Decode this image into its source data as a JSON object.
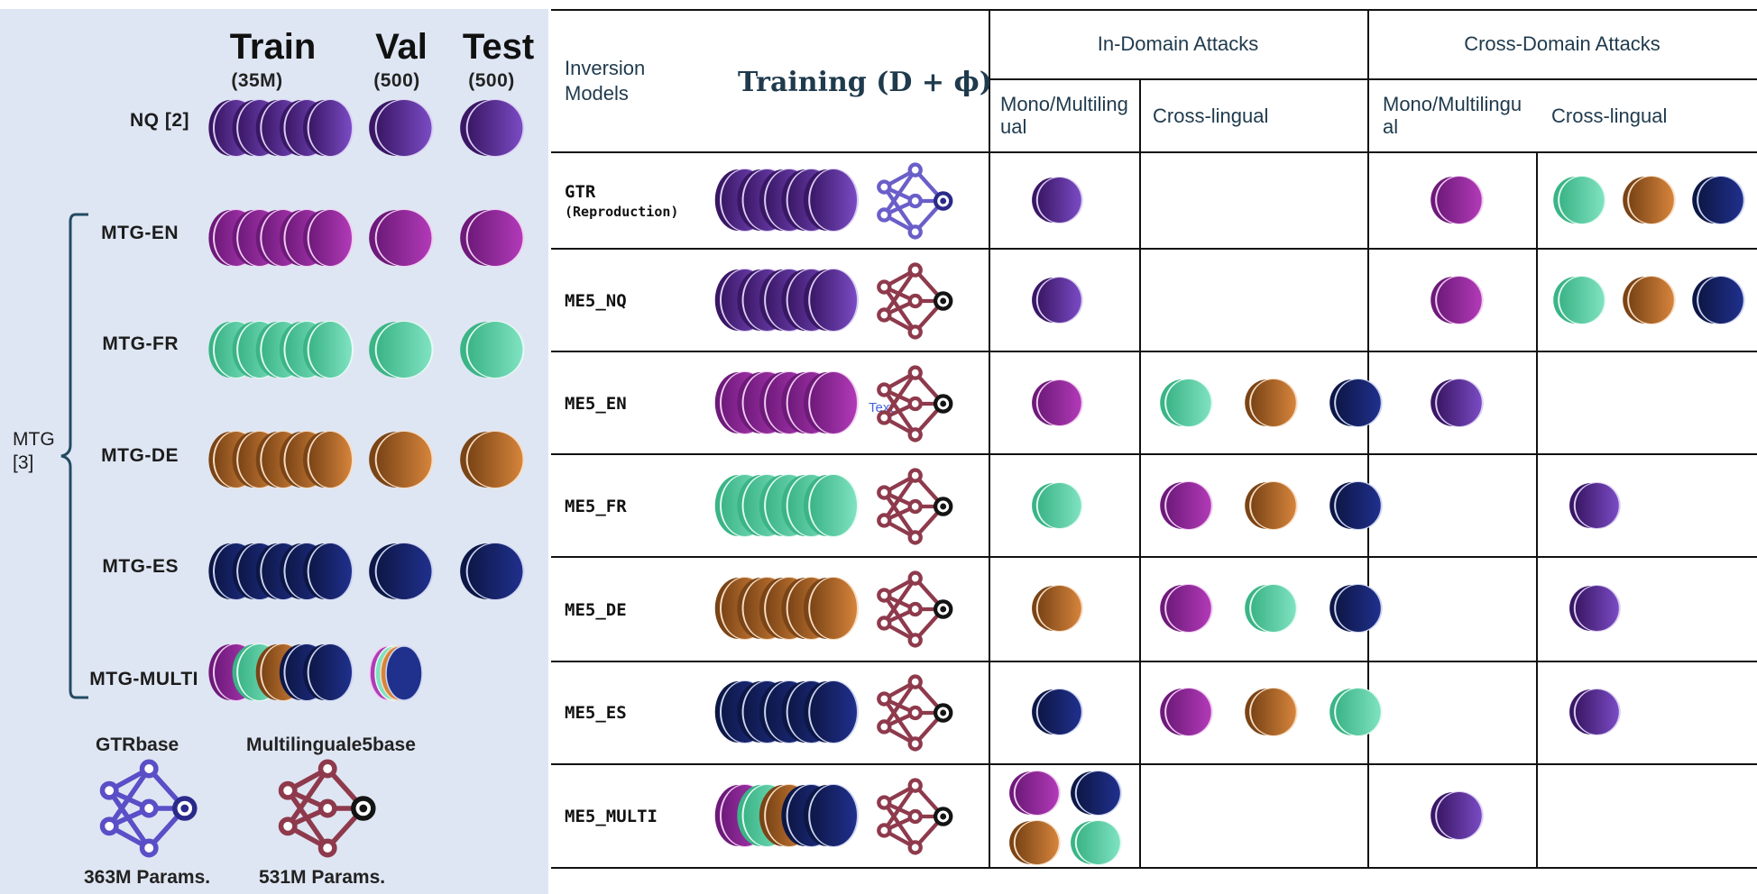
{
  "left_panel": {
    "columns": [
      {
        "title": "Train",
        "subtitle": "(35M)"
      },
      {
        "title": "Val",
        "subtitle": "(500)"
      },
      {
        "title": "Test",
        "subtitle": "(500)"
      }
    ],
    "rows": [
      {
        "label": "NQ [2]",
        "colorset": "purple"
      },
      {
        "label": "MTG-EN",
        "colorset": "magenta"
      },
      {
        "label": "MTG-FR",
        "colorset": "mint"
      },
      {
        "label": "MTG-DE",
        "colorset": "orange"
      },
      {
        "label": "MTG-ES",
        "colorset": "navy"
      },
      {
        "label": "MTG-MULTI",
        "colorset": "multi"
      }
    ],
    "group_label_line1": "MTG",
    "group_label_line2": "[3]",
    "models": [
      {
        "name": "GTRbase",
        "params": "363M Params.",
        "icon": "neural-network-icon",
        "color": "#5a4fc7"
      },
      {
        "name": "Multilinguale5base",
        "params": "531M Params.",
        "icon": "neural-network-icon",
        "color": "#8e3a4c"
      }
    ]
  },
  "table": {
    "header": {
      "inversion_models": "Inversion Models",
      "training_formula": "Training (D + ϕ)",
      "in_domain": "In-Domain Attacks",
      "cross_domain": "Cross-Domain Attacks",
      "mono_in": "Mono/Multilingual",
      "cross_in": "Cross-lingual",
      "mono_cross": "Mono/Multilingual",
      "cross_cross": "Cross-lingual"
    },
    "rows": [
      {
        "name": "GTR",
        "sub": "(Reproduction)",
        "train": "purple",
        "net": "gtr",
        "in_mono": [
          "purple"
        ],
        "in_cross": [],
        "cd_mono": [
          "magenta"
        ],
        "cd_cross": [
          "mint",
          "orange",
          "navy"
        ]
      },
      {
        "name": "ME5_NQ",
        "sub": "",
        "train": "purple",
        "net": "me5",
        "in_mono": [
          "purple"
        ],
        "in_cross": [],
        "cd_mono": [
          "magenta"
        ],
        "cd_cross": [
          "mint",
          "orange",
          "navy"
        ]
      },
      {
        "name": "ME5_EN",
        "sub": "",
        "train": "magenta",
        "net": "me5",
        "in_mono": [
          "magenta"
        ],
        "in_cross": [
          "mint",
          "orange",
          "navy"
        ],
        "cd_mono": [
          "purple"
        ],
        "cd_cross": []
      },
      {
        "name": "ME5_FR",
        "sub": "",
        "train": "mint",
        "net": "me5",
        "in_mono": [
          "mint"
        ],
        "in_cross": [
          "magenta",
          "orange",
          "navy"
        ],
        "cd_mono": [],
        "cd_cross": [
          "purple"
        ]
      },
      {
        "name": "ME5_DE",
        "sub": "",
        "train": "orange",
        "net": "me5",
        "in_mono": [
          "orange"
        ],
        "in_cross": [
          "magenta",
          "mint",
          "navy"
        ],
        "cd_mono": [],
        "cd_cross": [
          "purple"
        ]
      },
      {
        "name": "ME5_ES",
        "sub": "",
        "train": "navy",
        "net": "me5",
        "in_mono": [
          "navy"
        ],
        "in_cross": [
          "magenta",
          "orange",
          "mint"
        ],
        "cd_mono": [],
        "cd_cross": [
          "purple"
        ]
      },
      {
        "name": "ME5_MULTI",
        "sub": "",
        "train": "multi",
        "net": "me5",
        "in_mono": [
          "magenta",
          "navy",
          "orange",
          "mint"
        ],
        "in_cross": [],
        "cd_mono": [
          "purple"
        ],
        "cd_cross": []
      }
    ],
    "stray_text": "Text"
  },
  "colors": {
    "purple": {
      "dark": "#3a1765",
      "light": "#7a4bc4",
      "rim": "#d9cdf3"
    },
    "magenta": {
      "dark": "#6e1a7a",
      "light": "#b23ab8",
      "rim": "#f0cdf2"
    },
    "mint": {
      "dark": "#3bb486",
      "light": "#7fe2c1",
      "rim": "#e4fbf2"
    },
    "orange": {
      "dark": "#7a4416",
      "light": "#d6843b",
      "rim": "#f7dcc2"
    },
    "navy": {
      "dark": "#0d1746",
      "light": "#20308d",
      "rim": "#cdd4f1"
    }
  }
}
